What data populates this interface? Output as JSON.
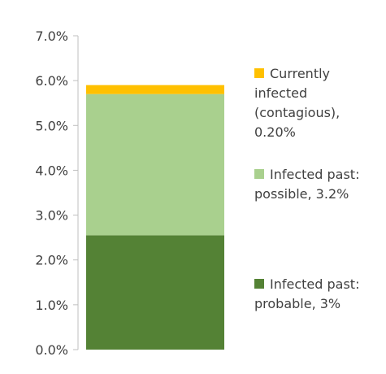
{
  "chart_data": {
    "type": "bar",
    "stacked": true,
    "categories": [
      ""
    ],
    "ylim": [
      0,
      7
    ],
    "y_ticks": [
      "0.0%",
      "1.0%",
      "2.0%",
      "3.0%",
      "4.0%",
      "5.0%",
      "6.0%",
      "7.0%"
    ],
    "series": [
      {
        "name": "Infected past: probable, 3%",
        "legend_lines": [
          "Infected past:",
          "probable, 3%"
        ],
        "value": 2.55,
        "color": "#548235"
      },
      {
        "name": "Infected past: possible, 3.2%",
        "legend_lines": [
          "Infected past:",
          "possible, 3.2%"
        ],
        "value": 3.15,
        "color": "#a9d08e"
      },
      {
        "name": "Currently infected (contagious), 0.20%",
        "legend_lines": [
          "Currently",
          "infected",
          "(contagious),",
          "0.20%"
        ],
        "value": 0.2,
        "color": "#ffc000"
      }
    ],
    "legend_position": "right",
    "grid": false
  }
}
